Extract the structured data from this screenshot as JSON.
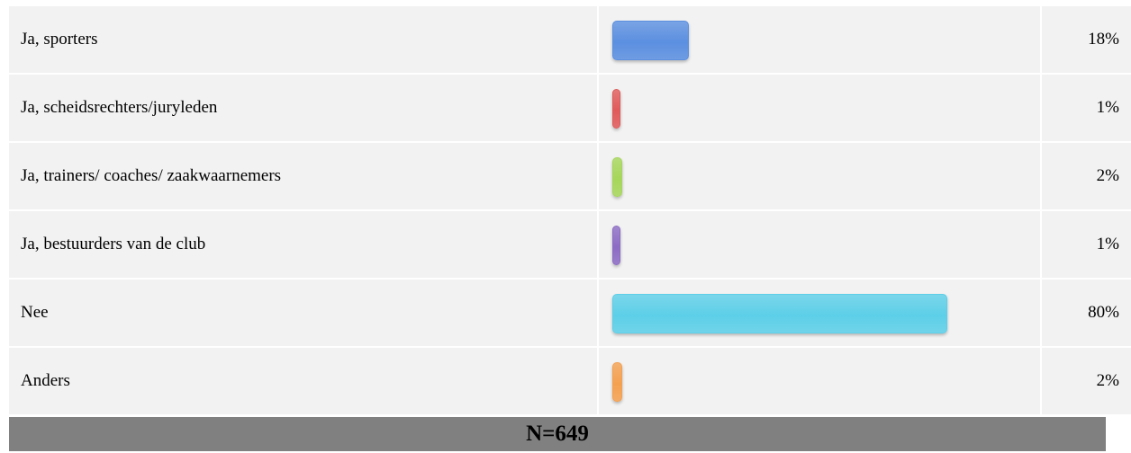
{
  "chart_data": {
    "type": "bar",
    "orientation": "horizontal",
    "categories": [
      "Ja, sporters",
      "Ja, scheidsrechters/juryleden",
      "Ja, trainers/ coaches/ zaakwaarnemers",
      "Ja, bestuurders van de club",
      "Nee",
      "Anders"
    ],
    "values": [
      18,
      1,
      2,
      1,
      80,
      2
    ],
    "value_labels": [
      "18%",
      "1%",
      "2%",
      "1%",
      "80%",
      "2%"
    ],
    "colors": [
      "#5b8fe0",
      "#e05a5a",
      "#a6d65a",
      "#8c6cc4",
      "#5ccfe8",
      "#f4a050"
    ],
    "unit": "%",
    "xlim": [
      0,
      100
    ]
  },
  "footer": {
    "text": "N=649"
  }
}
